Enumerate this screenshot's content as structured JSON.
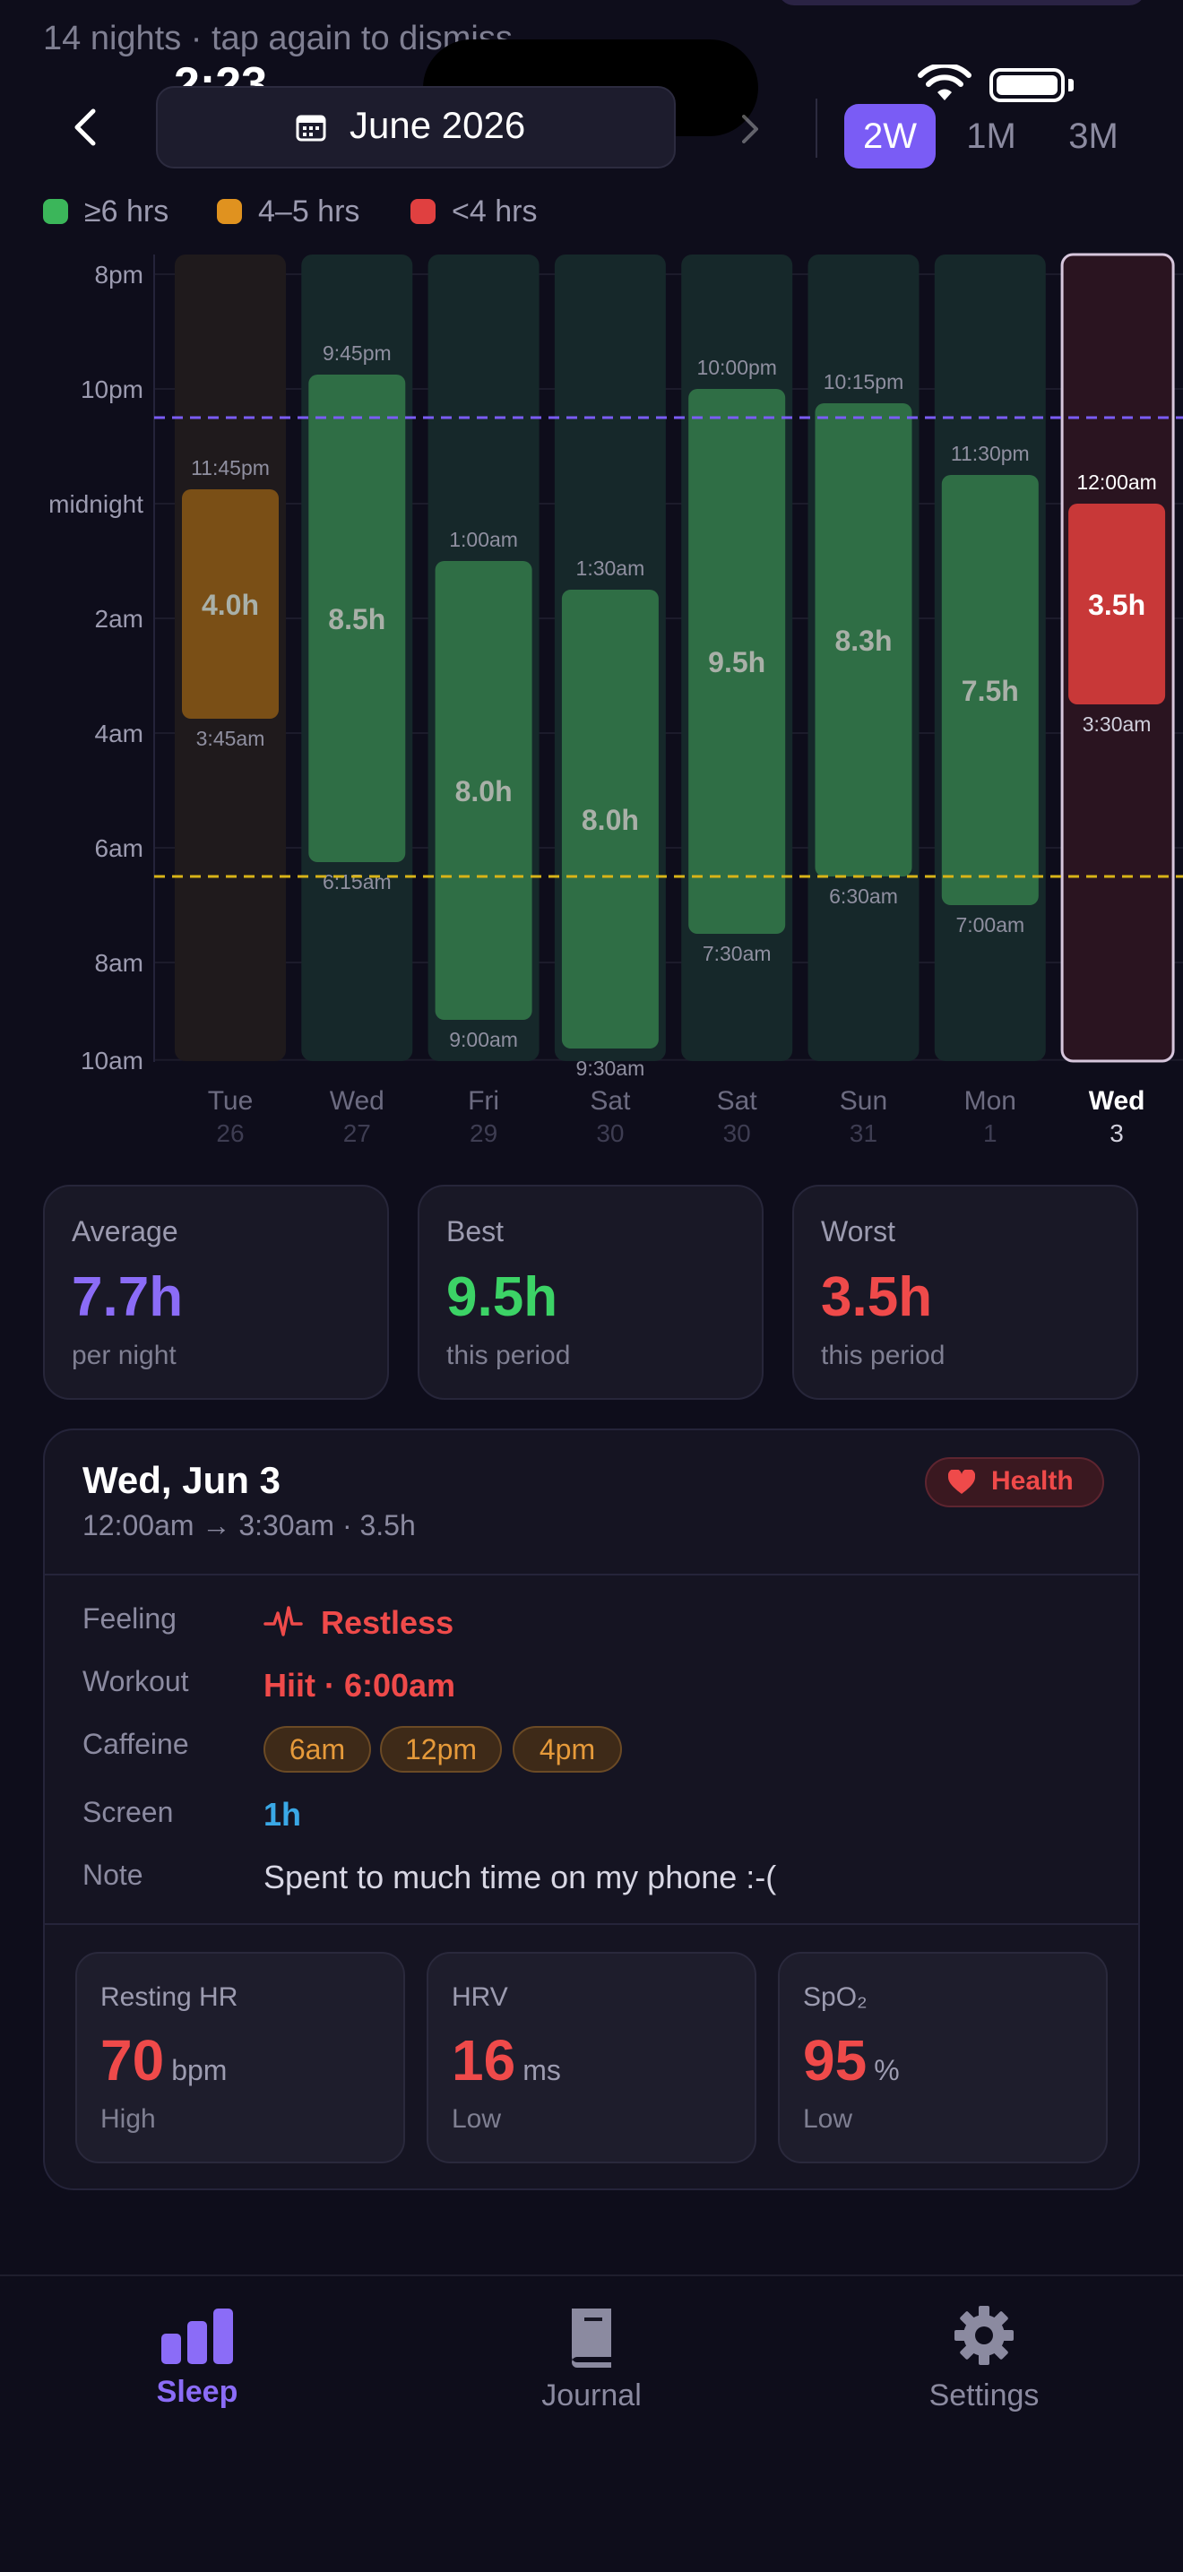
{
  "status": {
    "time": "2:23"
  },
  "header": {
    "subtitle_partial": "14 nights · tap again to dismiss",
    "month_label": "June 2026",
    "ranges": [
      "2W",
      "1M",
      "3M"
    ],
    "active_range": "2W"
  },
  "legend": [
    {
      "label": "≥6 hrs",
      "color": "#3bb65a"
    },
    {
      "label": "4–5 hrs",
      "color": "#e0921f"
    },
    {
      "label": "<4 hrs",
      "color": "#e04040"
    }
  ],
  "chart_data": {
    "type": "bar",
    "y_axis_labels": [
      "8pm",
      "10pm",
      "midnight",
      "2am",
      "4am",
      "6am",
      "8am",
      "10am"
    ],
    "target_bedtime": "10:30pm",
    "target_wake": "6:30am",
    "nights": [
      {
        "day": "Tue",
        "date": "26",
        "start": "11:45pm",
        "end": "3:45am",
        "hours": "4.0h",
        "status": "medium"
      },
      {
        "day": "Wed",
        "date": "27",
        "start": "9:45pm",
        "end": "6:15am",
        "hours": "8.5h",
        "status": "good"
      },
      {
        "day": "Fri",
        "date": "29",
        "start": "1:00am",
        "end": "9:00am",
        "hours": "8.0h",
        "status": "good"
      },
      {
        "day": "Sat",
        "date": "30",
        "start": "1:30am",
        "end": "9:30am",
        "hours": "8.0h",
        "status": "good"
      },
      {
        "day": "Sat",
        "date": "30",
        "start": "10:00pm",
        "end": "7:30am",
        "hours": "9.5h",
        "status": "good"
      },
      {
        "day": "Sun",
        "date": "31",
        "start": "10:15pm",
        "end": "6:30am",
        "hours": "8.3h",
        "status": "good"
      },
      {
        "day": "Mon",
        "date": "1",
        "start": "11:30pm",
        "end": "7:00am",
        "hours": "7.5h",
        "status": "good"
      },
      {
        "day": "Wed",
        "date": "3",
        "start": "12:00am",
        "end": "3:30am",
        "hours": "3.5h",
        "status": "bad",
        "selected": true
      }
    ]
  },
  "summary": [
    {
      "label": "Average",
      "value": "7.7h",
      "sub": "per night",
      "color": "#8b6cf7"
    },
    {
      "label": "Best",
      "value": "9.5h",
      "sub": "this period",
      "color": "#3cd366"
    },
    {
      "label": "Worst",
      "value": "3.5h",
      "sub": "this period",
      "color": "#ef4a4a"
    }
  ],
  "detail": {
    "title": "Wed, Jun 3",
    "range": "12:00am → 3:30am · 3.5h",
    "badge": "Health",
    "rows": {
      "feeling_label": "Feeling",
      "feeling_value": "Restless",
      "workout_label": "Workout",
      "workout_value": "Hiit · 6:00am",
      "caffeine_label": "Caffeine",
      "caffeine_values": [
        "6am",
        "12pm",
        "4pm"
      ],
      "screen_label": "Screen",
      "screen_value": "1h",
      "note_label": "Note",
      "note_value": "Spent to much time on my phone :-("
    },
    "metrics": [
      {
        "label": "Resting HR",
        "value": "70",
        "unit": "bpm",
        "sub": "High"
      },
      {
        "label": "HRV",
        "value": "16",
        "unit": "ms",
        "sub": "Low"
      },
      {
        "label": "SpO₂",
        "value": "95",
        "unit": "%",
        "sub": "Low"
      }
    ]
  },
  "tabs": [
    {
      "label": "Sleep",
      "icon": "bar-chart-icon",
      "active": true
    },
    {
      "label": "Journal",
      "icon": "book-icon",
      "active": false
    },
    {
      "label": "Settings",
      "icon": "gear-icon",
      "active": false
    }
  ]
}
